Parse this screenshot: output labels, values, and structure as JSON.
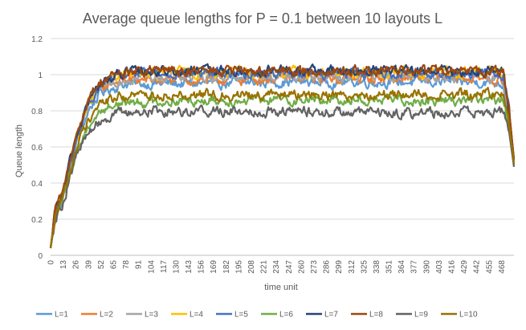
{
  "chart_data": {
    "type": "line",
    "title": "Average queue lengths for P = 0.1 between 10 layouts L",
    "xlabel": "time unit",
    "ylabel": "Queue length",
    "xlim": [
      0,
      481
    ],
    "ylim": [
      0,
      1.2
    ],
    "yticks": [
      "0",
      "0.2",
      "0.4",
      "0.6",
      "0.8",
      "1",
      "1.2"
    ],
    "xticks": [
      "0",
      "13",
      "26",
      "39",
      "52",
      "65",
      "78",
      "91",
      "104",
      "117",
      "130",
      "143",
      "156",
      "169",
      "182",
      "195",
      "208",
      "221",
      "234",
      "247",
      "260",
      "273",
      "286",
      "299",
      "312",
      "325",
      "338",
      "351",
      "364",
      "377",
      "390",
      "403",
      "416",
      "429",
      "442",
      "455",
      "468"
    ],
    "grid": true,
    "legend_position": "bottom",
    "series": [
      {
        "name": "L=1",
        "color": "#5B9BD5",
        "points": [
          [
            0,
            0.04
          ],
          [
            5,
            0.22
          ],
          [
            13,
            0.32
          ],
          [
            26,
            0.6
          ],
          [
            39,
            0.8
          ],
          [
            52,
            0.9
          ],
          [
            65,
            0.93
          ],
          [
            78,
            0.95
          ],
          [
            104,
            0.95
          ],
          [
            156,
            0.95
          ],
          [
            234,
            0.96
          ],
          [
            312,
            0.96
          ],
          [
            390,
            0.96
          ],
          [
            455,
            0.96
          ],
          [
            470,
            0.95
          ],
          [
            476,
            0.75
          ],
          [
            481,
            0.5
          ]
        ]
      },
      {
        "name": "L=2",
        "color": "#ED7D31",
        "points": [
          [
            0,
            0.04
          ],
          [
            5,
            0.24
          ],
          [
            13,
            0.34
          ],
          [
            26,
            0.63
          ],
          [
            39,
            0.83
          ],
          [
            52,
            0.92
          ],
          [
            65,
            0.96
          ],
          [
            78,
            0.97
          ],
          [
            104,
            0.97
          ],
          [
            156,
            0.97
          ],
          [
            234,
            0.98
          ],
          [
            312,
            0.98
          ],
          [
            390,
            0.98
          ],
          [
            455,
            0.98
          ],
          [
            470,
            0.96
          ],
          [
            476,
            0.78
          ],
          [
            481,
            0.52
          ]
        ]
      },
      {
        "name": "L=3",
        "color": "#A5A5A5",
        "points": [
          [
            0,
            0.04
          ],
          [
            5,
            0.24
          ],
          [
            13,
            0.33
          ],
          [
            26,
            0.62
          ],
          [
            39,
            0.82
          ],
          [
            52,
            0.92
          ],
          [
            65,
            0.96
          ],
          [
            78,
            0.98
          ],
          [
            104,
            0.99
          ],
          [
            156,
            0.99
          ],
          [
            234,
            0.99
          ],
          [
            312,
            0.99
          ],
          [
            390,
            0.99
          ],
          [
            455,
            0.99
          ],
          [
            470,
            0.98
          ],
          [
            476,
            0.78
          ],
          [
            481,
            0.52
          ]
        ]
      },
      {
        "name": "L=4",
        "color": "#FFC000",
        "points": [
          [
            0,
            0.04
          ],
          [
            5,
            0.25
          ],
          [
            13,
            0.34
          ],
          [
            26,
            0.64
          ],
          [
            39,
            0.84
          ],
          [
            52,
            0.94
          ],
          [
            65,
            0.98
          ],
          [
            78,
            1.0
          ],
          [
            104,
            1.01
          ],
          [
            156,
            1.01
          ],
          [
            234,
            1.01
          ],
          [
            312,
            1.01
          ],
          [
            390,
            1.01
          ],
          [
            455,
            1.02
          ],
          [
            470,
            1.0
          ],
          [
            476,
            0.8
          ],
          [
            481,
            0.53
          ]
        ]
      },
      {
        "name": "L=5",
        "color": "#4472C4",
        "points": [
          [
            0,
            0.04
          ],
          [
            5,
            0.24
          ],
          [
            13,
            0.33
          ],
          [
            26,
            0.63
          ],
          [
            39,
            0.84
          ],
          [
            52,
            0.94
          ],
          [
            65,
            0.98
          ],
          [
            78,
            1.0
          ],
          [
            104,
            1.01
          ],
          [
            156,
            1.01
          ],
          [
            234,
            1.01
          ],
          [
            312,
            1.01
          ],
          [
            390,
            1.01
          ],
          [
            455,
            1.01
          ],
          [
            470,
            1.0
          ],
          [
            476,
            0.8
          ],
          [
            481,
            0.53
          ]
        ]
      },
      {
        "name": "L=6",
        "color": "#70AD47",
        "points": [
          [
            0,
            0.04
          ],
          [
            5,
            0.22
          ],
          [
            13,
            0.31
          ],
          [
            26,
            0.56
          ],
          [
            39,
            0.72
          ],
          [
            52,
            0.8
          ],
          [
            65,
            0.83
          ],
          [
            78,
            0.85
          ],
          [
            104,
            0.85
          ],
          [
            156,
            0.86
          ],
          [
            234,
            0.86
          ],
          [
            312,
            0.86
          ],
          [
            390,
            0.86
          ],
          [
            455,
            0.86
          ],
          [
            470,
            0.86
          ],
          [
            476,
            0.7
          ],
          [
            481,
            0.5
          ]
        ]
      },
      {
        "name": "L=7",
        "color": "#264478",
        "points": [
          [
            0,
            0.04
          ],
          [
            5,
            0.25
          ],
          [
            13,
            0.35
          ],
          [
            26,
            0.65
          ],
          [
            39,
            0.85
          ],
          [
            52,
            0.95
          ],
          [
            65,
            0.99
          ],
          [
            78,
            1.01
          ],
          [
            104,
            1.02
          ],
          [
            156,
            1.02
          ],
          [
            234,
            1.02
          ],
          [
            312,
            1.02
          ],
          [
            390,
            1.02
          ],
          [
            455,
            1.02
          ],
          [
            470,
            1.01
          ],
          [
            476,
            0.8
          ],
          [
            481,
            0.53
          ]
        ]
      },
      {
        "name": "L=8",
        "color": "#9E480E",
        "points": [
          [
            0,
            0.04
          ],
          [
            5,
            0.25
          ],
          [
            13,
            0.35
          ],
          [
            26,
            0.66
          ],
          [
            39,
            0.86
          ],
          [
            52,
            0.96
          ],
          [
            65,
            1.0
          ],
          [
            78,
            1.01
          ],
          [
            104,
            1.02
          ],
          [
            156,
            1.02
          ],
          [
            234,
            1.02
          ],
          [
            312,
            1.02
          ],
          [
            390,
            1.02
          ],
          [
            455,
            1.02
          ],
          [
            470,
            1.01
          ],
          [
            476,
            0.8
          ],
          [
            481,
            0.53
          ]
        ]
      },
      {
        "name": "L=9",
        "color": "#636363",
        "points": [
          [
            0,
            0.04
          ],
          [
            5,
            0.21
          ],
          [
            13,
            0.3
          ],
          [
            26,
            0.54
          ],
          [
            39,
            0.68
          ],
          [
            52,
            0.75
          ],
          [
            65,
            0.78
          ],
          [
            78,
            0.79
          ],
          [
            104,
            0.8
          ],
          [
            156,
            0.8
          ],
          [
            234,
            0.8
          ],
          [
            312,
            0.79
          ],
          [
            390,
            0.79
          ],
          [
            455,
            0.79
          ],
          [
            470,
            0.8
          ],
          [
            476,
            0.68
          ],
          [
            481,
            0.49
          ]
        ]
      },
      {
        "name": "L=10",
        "color": "#997300",
        "points": [
          [
            0,
            0.04
          ],
          [
            5,
            0.23
          ],
          [
            13,
            0.32
          ],
          [
            26,
            0.58
          ],
          [
            39,
            0.76
          ],
          [
            52,
            0.84
          ],
          [
            65,
            0.87
          ],
          [
            78,
            0.88
          ],
          [
            104,
            0.89
          ],
          [
            156,
            0.89
          ],
          [
            234,
            0.89
          ],
          [
            312,
            0.89
          ],
          [
            390,
            0.89
          ],
          [
            455,
            0.89
          ],
          [
            470,
            0.89
          ],
          [
            476,
            0.72
          ],
          [
            481,
            0.51
          ]
        ]
      }
    ]
  }
}
